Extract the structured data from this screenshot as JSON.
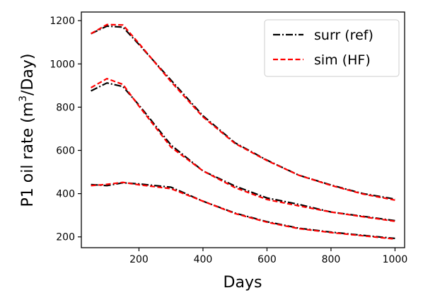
{
  "chart_data": {
    "type": "line",
    "xlabel": "Days",
    "ylabel_main": "P1 oil rate (m",
    "ylabel_sup": "3",
    "ylabel_tail": "/Day)",
    "xlim": [
      20,
      1030
    ],
    "ylim": [
      150,
      1240
    ],
    "xticks": [
      200,
      400,
      600,
      800,
      1000
    ],
    "yticks": [
      200,
      400,
      600,
      800,
      1000,
      1200
    ],
    "grid": false,
    "legend_position": "top-right",
    "series": [
      {
        "name": "surr (ref)",
        "style": "dashdot",
        "color": "#000000",
        "lines": [
          {
            "x": [
              50,
              100,
              150,
              200,
              300,
              400,
              500,
              600,
              700,
              800,
              900,
              1000
            ],
            "y": [
              1140,
              1175,
              1170,
              1090,
              925,
              760,
              635,
              555,
              485,
              440,
              400,
              375
            ]
          },
          {
            "x": [
              50,
              100,
              150,
              200,
              300,
              400,
              500,
              600,
              700,
              800,
              900,
              1000
            ],
            "y": [
              875,
              912,
              895,
              810,
              625,
              505,
              435,
              380,
              350,
              315,
              295,
              275
            ]
          },
          {
            "x": [
              50,
              100,
              150,
              200,
              300,
              400,
              500,
              600,
              700,
              800,
              900,
              1000
            ],
            "y": [
              442,
              437,
              450,
              445,
              430,
              365,
              310,
              270,
              240,
              222,
              207,
              193
            ]
          }
        ]
      },
      {
        "name": "sim (HF)",
        "style": "dashed",
        "color": "#ff0000",
        "lines": [
          {
            "x": [
              50,
              100,
              150,
              200,
              300,
              400,
              500,
              600,
              700,
              800,
              900,
              1000
            ],
            "y": [
              1140,
              1182,
              1180,
              1095,
              918,
              755,
              632,
              553,
              485,
              438,
              398,
              370
            ]
          },
          {
            "x": [
              50,
              100,
              150,
              200,
              300,
              400,
              500,
              600,
              700,
              800,
              900,
              1000
            ],
            "y": [
              890,
              932,
              905,
              805,
              615,
              505,
              428,
              373,
              343,
              315,
              293,
              272
            ]
          },
          {
            "x": [
              50,
              100,
              150,
              200,
              300,
              400,
              500,
              600,
              700,
              800,
              900,
              1000
            ],
            "y": [
              437,
              443,
              452,
              441,
              423,
              365,
              308,
              268,
              238,
              220,
              205,
              190
            ]
          }
        ]
      }
    ]
  }
}
